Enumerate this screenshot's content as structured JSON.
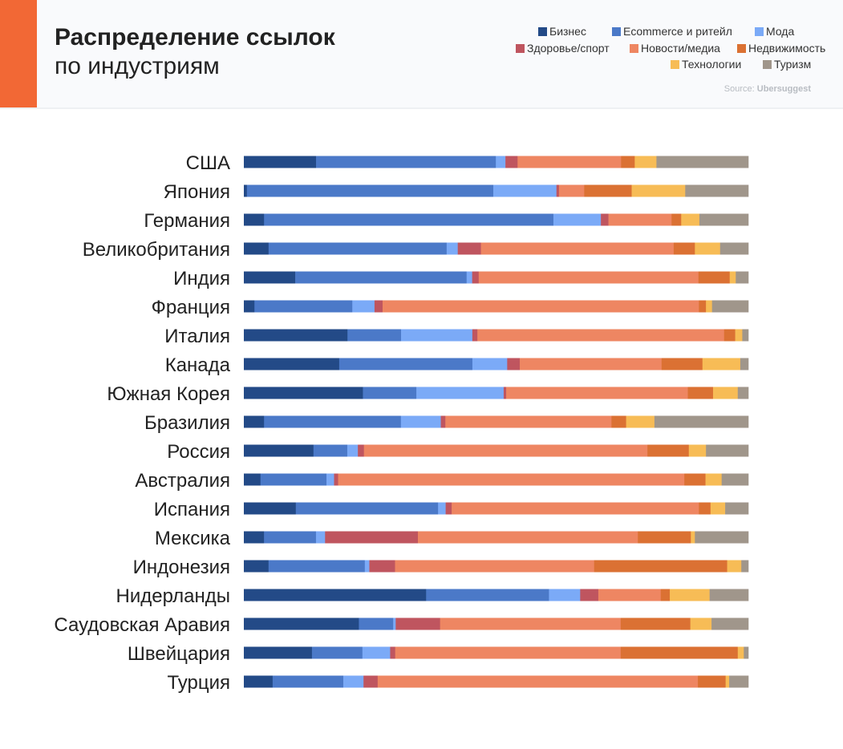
{
  "header": {
    "title_line1": "Распределение ссылок",
    "title_line2": "по индустриям",
    "source_label": "Source:",
    "source_name": "Ubersuggest",
    "accent_color": "#f26835"
  },
  "chart_data": {
    "type": "bar",
    "orientation": "horizontal",
    "stacked": "100%",
    "title": "Распределение ссылок по индустриям",
    "legend_position": "top-right",
    "grid": false,
    "xlim": [
      0,
      100
    ],
    "categories": [
      "США",
      "Япония",
      "Германия",
      "Великобритания",
      "Индия",
      "Франция",
      "Италия",
      "Канада",
      "Южная Корея",
      "Бразилия",
      "Россия",
      "Австралия",
      "Испания",
      "Мексика",
      "Индонезия",
      "Нидерланды",
      "Саудовская Аравия",
      "Швейцария",
      "Турция"
    ],
    "series": [
      {
        "name": "Бизнес",
        "color": "#234a87",
        "values": [
          14.3,
          0.6,
          4.0,
          4.9,
          10.2,
          2.1,
          20.5,
          18.9,
          23.6,
          4.0,
          13.8,
          3.3,
          10.3,
          4.0,
          4.9,
          36.2,
          22.8,
          13.5,
          5.7
        ]
      },
      {
        "name": "Ecommerce и ритейл",
        "color": "#4b79c8",
        "values": [
          35.6,
          48.8,
          57.3,
          35.3,
          34.0,
          19.4,
          10.6,
          26.4,
          10.6,
          27.1,
          6.7,
          13.1,
          28.2,
          10.3,
          19.1,
          24.4,
          6.8,
          10.0,
          14.0
        ]
      },
      {
        "name": "Мода",
        "color": "#7baaf7",
        "values": [
          1.9,
          12.5,
          9.4,
          2.2,
          1.1,
          4.4,
          14.1,
          6.9,
          17.3,
          7.9,
          2.1,
          1.5,
          1.5,
          1.8,
          0.9,
          6.2,
          0.5,
          5.5,
          4.0
        ]
      },
      {
        "name": "Здоровье/спорт",
        "color": "#bf555f",
        "values": [
          2.4,
          0.5,
          1.5,
          4.6,
          1.3,
          1.6,
          1.0,
          2.5,
          0.5,
          0.9,
          1.2,
          0.8,
          1.2,
          18.4,
          5.1,
          3.6,
          8.8,
          1.0,
          2.8
        ]
      },
      {
        "name": "Новости/медиа",
        "color": "#ee8662",
        "values": [
          20.5,
          5.0,
          12.5,
          38.2,
          43.6,
          62.7,
          48.8,
          28.1,
          36.0,
          32.9,
          56.2,
          68.7,
          49.0,
          43.6,
          39.5,
          12.4,
          35.8,
          44.7,
          63.4
        ]
      },
      {
        "name": "Недвижимость",
        "color": "#db7133",
        "values": [
          2.7,
          9.4,
          1.9,
          4.2,
          6.2,
          1.4,
          2.2,
          8.1,
          5.0,
          2.9,
          8.2,
          4.2,
          2.3,
          10.5,
          26.4,
          1.8,
          13.8,
          23.2,
          5.5
        ]
      },
      {
        "name": "Технологии",
        "color": "#f7bc56",
        "values": [
          4.3,
          10.6,
          3.6,
          5.0,
          1.2,
          1.2,
          1.4,
          7.5,
          4.9,
          5.6,
          3.4,
          3.2,
          2.9,
          0.8,
          2.8,
          7.9,
          4.2,
          1.2,
          0.7
        ]
      },
      {
        "name": "Туризм",
        "color": "#a0968b",
        "values": [
          18.2,
          12.5,
          9.7,
          5.6,
          2.5,
          7.2,
          1.2,
          1.6,
          2.1,
          18.6,
          8.4,
          5.3,
          4.6,
          10.6,
          1.4,
          7.7,
          7.3,
          0.9,
          3.8
        ]
      }
    ]
  }
}
